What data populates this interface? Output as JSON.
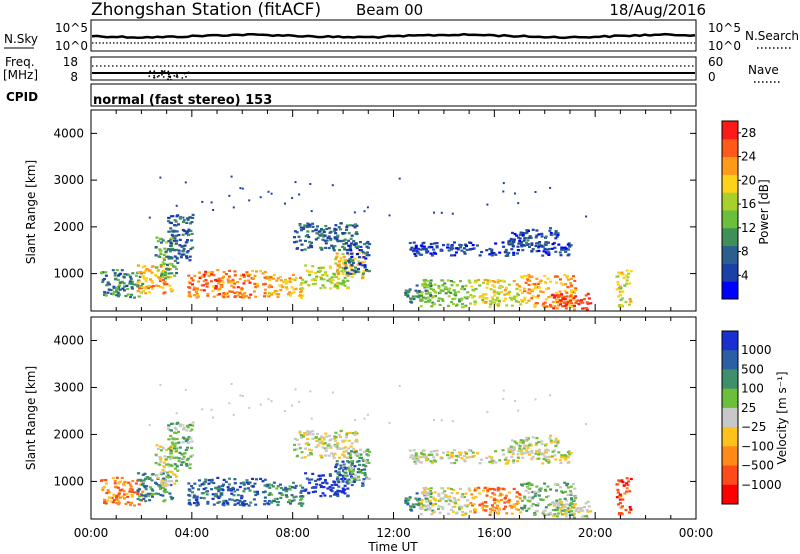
{
  "header": {
    "station": "Zhongshan Station (fitACF)",
    "beam": "Beam 00",
    "date": "18/Aug/2016"
  },
  "aux": {
    "nsky_label": "N.Sky",
    "nsky_ticks": [
      "10^5",
      "10^0"
    ],
    "nsearch_label": "N.Search",
    "nsearch_ticks": [
      "10^5",
      "10^0"
    ],
    "freq_label": "Freq.",
    "freq_unit": "[MHz]",
    "freq_ticks": [
      "18",
      "8"
    ],
    "nave_label": "Nave",
    "nave_ticks": [
      "60",
      "0"
    ],
    "cpid_label": "CPID",
    "cpid_text": "normal (fast stereo) 153"
  },
  "colors": {
    "power_scale": [
      "#0000ff",
      "#1c3fa8",
      "#2a5f8f",
      "#3f8f5a",
      "#6bbf3a",
      "#a8d02a",
      "#ffd21a",
      "#ff9a1a",
      "#ff5a1a",
      "#ff1a1a"
    ],
    "velocity_scale": [
      "#1a2fd0",
      "#2b5fa3",
      "#3f8f6a",
      "#6bbf3a",
      "#c8c8c8",
      "#ffc21a",
      "#ff8a1a",
      "#ff4a1a",
      "#ff0000"
    ],
    "dots": "#000000"
  },
  "chart_data": [
    {
      "type": "heatmap",
      "panel": "power",
      "ylabel": "Slant Range [km]",
      "xlabel": "Time UT",
      "x_ticks": [
        "00:00",
        "04:00",
        "08:00",
        "12:00",
        "16:00",
        "20:00",
        "00:00"
      ],
      "xlim": [
        0,
        24
      ],
      "ylim": [
        200,
        4500
      ],
      "y_ticks": [
        1000,
        2000,
        3000,
        4000
      ],
      "colorbar": {
        "label": "Power [dB]",
        "ticks": [
          4,
          8,
          12,
          16,
          20,
          24,
          28
        ],
        "range": [
          0,
          30
        ]
      },
      "blobs": [
        {
          "t0": 0.3,
          "t1": 2.0,
          "r0": 500,
          "r1": 1100,
          "v": 9
        },
        {
          "t0": 1.8,
          "t1": 3.2,
          "r0": 600,
          "r1": 1200,
          "v": 22
        },
        {
          "t0": 2.5,
          "t1": 3.4,
          "r0": 900,
          "r1": 1800,
          "v": 12
        },
        {
          "t0": 3.0,
          "t1": 4.0,
          "r0": 1300,
          "r1": 2300,
          "v": 7
        },
        {
          "t0": 3.8,
          "t1": 7.0,
          "r0": 500,
          "r1": 1100,
          "v": 24
        },
        {
          "t0": 7.0,
          "t1": 8.4,
          "r0": 500,
          "r1": 1000,
          "v": 21
        },
        {
          "t0": 8.4,
          "t1": 10.2,
          "r0": 700,
          "r1": 1200,
          "v": 16
        },
        {
          "t0": 9.6,
          "t1": 10.8,
          "r0": 900,
          "r1": 1500,
          "v": 20
        },
        {
          "t0": 8.0,
          "t1": 10.5,
          "r0": 1500,
          "r1": 2100,
          "v": 7
        },
        {
          "t0": 10.0,
          "t1": 11.0,
          "r0": 1000,
          "r1": 1700,
          "v": 6
        },
        {
          "t0": 12.4,
          "t1": 13.5,
          "r0": 400,
          "r1": 800,
          "v": 10
        },
        {
          "t0": 13.0,
          "t1": 15.0,
          "r0": 300,
          "r1": 900,
          "v": 14
        },
        {
          "t0": 12.6,
          "t1": 19.0,
          "r0": 1400,
          "r1": 1700,
          "v": 5
        },
        {
          "t0": 15.0,
          "t1": 17.0,
          "r0": 300,
          "r1": 900,
          "v": 18
        },
        {
          "t0": 17.0,
          "t1": 19.2,
          "r0": 300,
          "r1": 1000,
          "v": 22
        },
        {
          "t0": 18.2,
          "t1": 19.8,
          "r0": 250,
          "r1": 600,
          "v": 27
        },
        {
          "t0": 16.5,
          "t1": 18.5,
          "r0": 1600,
          "r1": 2000,
          "v": 6
        },
        {
          "t0": 20.8,
          "t1": 21.4,
          "r0": 300,
          "r1": 1100,
          "v": 18
        }
      ]
    },
    {
      "type": "heatmap",
      "panel": "velocity",
      "ylabel": "Slant Range [km]",
      "xlabel": "Time UT",
      "x_ticks": [
        "00:00",
        "04:00",
        "08:00",
        "12:00",
        "16:00",
        "20:00",
        "00:00"
      ],
      "xlim": [
        0,
        24
      ],
      "ylim": [
        200,
        4500
      ],
      "y_ticks": [
        1000,
        2000,
        3000,
        4000
      ],
      "colorbar": {
        "label": "Velocity [m s⁻¹]",
        "ticks": [
          "1000",
          "500",
          "100",
          "25",
          "−25",
          "−100",
          "−500",
          "−1000"
        ]
      },
      "blobs": [
        {
          "t0": 0.3,
          "t1": 2.0,
          "r0": 500,
          "r1": 1100,
          "v": 6
        },
        {
          "t0": 1.8,
          "t1": 3.2,
          "r0": 600,
          "r1": 1200,
          "v": 2
        },
        {
          "t0": 2.5,
          "t1": 3.4,
          "r0": 900,
          "r1": 1800,
          "v": 4
        },
        {
          "t0": 3.0,
          "t1": 4.0,
          "r0": 1300,
          "r1": 2300,
          "v": 3
        },
        {
          "t0": 3.8,
          "t1": 7.0,
          "r0": 500,
          "r1": 1100,
          "v": 1
        },
        {
          "t0": 7.0,
          "t1": 8.4,
          "r0": 500,
          "r1": 1000,
          "v": 2
        },
        {
          "t0": 8.4,
          "t1": 10.2,
          "r0": 700,
          "r1": 1200,
          "v": 0
        },
        {
          "t0": 9.6,
          "t1": 10.8,
          "r0": 900,
          "r1": 1500,
          "v": 1
        },
        {
          "t0": 8.0,
          "t1": 10.5,
          "r0": 1500,
          "r1": 2100,
          "v": 4
        },
        {
          "t0": 10.0,
          "t1": 11.0,
          "r0": 1000,
          "r1": 1700,
          "v": 3
        },
        {
          "t0": 12.4,
          "t1": 13.5,
          "r0": 400,
          "r1": 800,
          "v": 2
        },
        {
          "t0": 13.0,
          "t1": 15.0,
          "r0": 300,
          "r1": 900,
          "v": 4
        },
        {
          "t0": 12.6,
          "t1": 19.0,
          "r0": 1400,
          "r1": 1700,
          "v": 4
        },
        {
          "t0": 15.0,
          "t1": 17.0,
          "r0": 300,
          "r1": 900,
          "v": 6
        },
        {
          "t0": 17.0,
          "t1": 19.2,
          "r0": 300,
          "r1": 1000,
          "v": 3
        },
        {
          "t0": 18.2,
          "t1": 19.8,
          "r0": 250,
          "r1": 600,
          "v": 4
        },
        {
          "t0": 16.5,
          "t1": 18.5,
          "r0": 1600,
          "r1": 2000,
          "v": 4
        },
        {
          "t0": 20.8,
          "t1": 21.4,
          "r0": 300,
          "r1": 1100,
          "v": 7
        }
      ]
    }
  ]
}
